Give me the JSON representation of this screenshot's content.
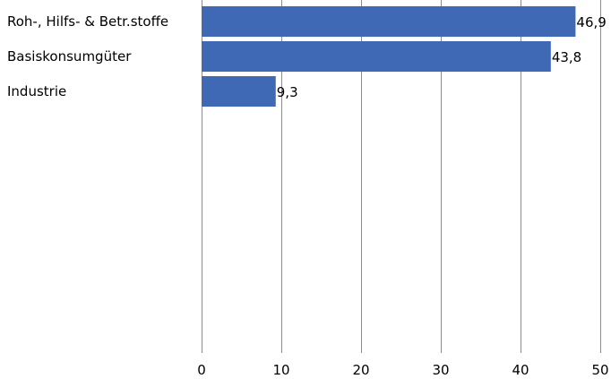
{
  "chart_data": {
    "type": "bar",
    "orientation": "horizontal",
    "categories": [
      "Roh-, Hilfs- & Betr.stoffe",
      "Basiskonsumgüter",
      "Industrie"
    ],
    "values": [
      46.9,
      43.8,
      9.3
    ],
    "value_labels": [
      "46,9",
      "43,8",
      "9,3"
    ],
    "xlim": [
      0,
      50
    ],
    "xticks": [
      0,
      10,
      20,
      30,
      40,
      50
    ],
    "xtick_labels": [
      "0",
      "10",
      "20",
      "30",
      "40",
      "50"
    ],
    "grid": "vertical",
    "bar_color": "#4069B5",
    "title": "",
    "xlabel": "",
    "ylabel": ""
  }
}
